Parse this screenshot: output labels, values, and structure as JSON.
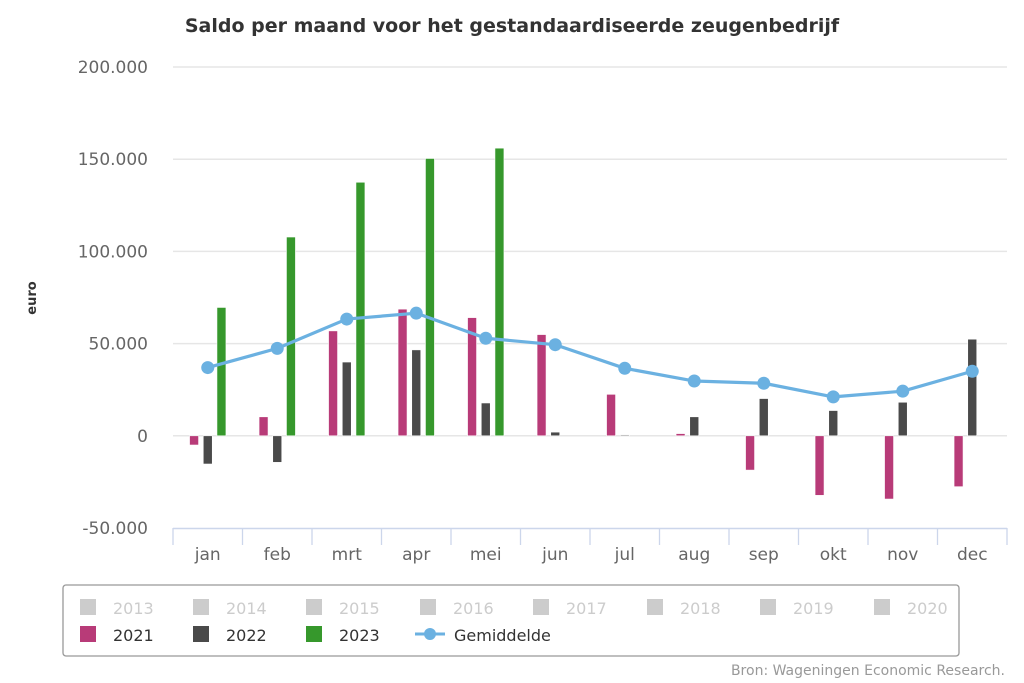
{
  "chart_data": {
    "type": "bar",
    "title": "Saldo per maand voor het gestandaardiseerde zeugenbedrijf",
    "xlabel": "",
    "ylabel": "euro",
    "ylim": [
      -50000,
      200000
    ],
    "yticks": [
      -50000,
      0,
      50000,
      100000,
      150000,
      200000
    ],
    "ytick_labels": [
      "-50.000",
      "0",
      "50.000",
      "100.000",
      "150.000",
      "200.000"
    ],
    "grid": true,
    "categories": [
      "jan",
      "feb",
      "mrt",
      "apr",
      "mei",
      "jun",
      "jul",
      "aug",
      "sep",
      "okt",
      "nov",
      "dec"
    ],
    "series": [
      {
        "name": "2021",
        "type": "bar",
        "color": "#b83b78",
        "values": [
          -5000,
          10300,
          56900,
          68700,
          64100,
          54900,
          22500,
          1200,
          -18600,
          -32300,
          -34300,
          -27600
        ]
      },
      {
        "name": "2022",
        "type": "bar",
        "color": "#4a4a4a",
        "values": [
          -15300,
          -14400,
          40000,
          46600,
          17800,
          2000,
          500,
          10300,
          20200,
          13700,
          18200,
          52400
        ]
      },
      {
        "name": "2023",
        "type": "bar",
        "color": "#36982c",
        "values": [
          69600,
          107800,
          137500,
          150400,
          156000,
          null,
          null,
          null,
          null,
          null,
          null,
          null
        ]
      },
      {
        "name": "Gemiddelde",
        "type": "line",
        "color": "#6bb1e1",
        "values": [
          37000,
          47400,
          63300,
          66500,
          52900,
          49400,
          36600,
          29700,
          28500,
          21100,
          24200,
          35000
        ]
      }
    ],
    "legend": {
      "placement": "bottom",
      "hidden_entries": [
        "2013",
        "2014",
        "2015",
        "2016",
        "2017",
        "2018",
        "2019",
        "2020"
      ],
      "hidden_color": "#cccccc",
      "visible_entries": [
        "2021",
        "2022",
        "2023",
        "Gemiddelde"
      ]
    },
    "credit": "Bron: Wageningen Economic Research."
  }
}
